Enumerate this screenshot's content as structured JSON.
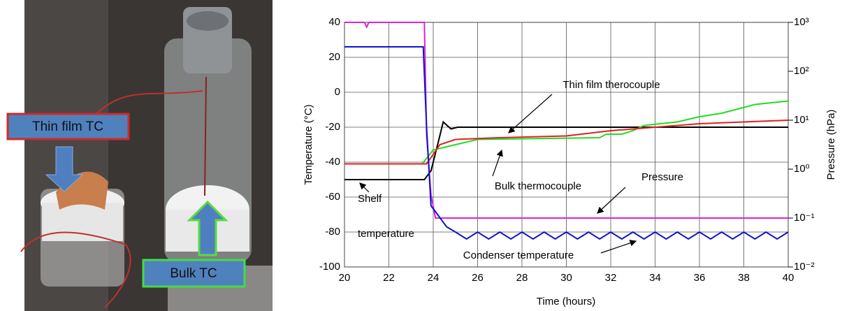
{
  "photo": {
    "labels": [
      "Thin film TC",
      "Bulk TC"
    ]
  },
  "chart_data": {
    "type": "line",
    "xlabel": "Time (hours)",
    "ylabel": "Temperature (°C)",
    "y2label": "Pressure (hPa)",
    "xlim": [
      20,
      40
    ],
    "xticks": [
      20,
      22,
      24,
      26,
      28,
      30,
      32,
      34,
      36,
      38,
      40
    ],
    "ylim": [
      -100,
      40
    ],
    "yticks": [
      -100,
      -80,
      -60,
      -40,
      -20,
      0,
      20,
      40
    ],
    "y2lim": [
      0.01,
      1000
    ],
    "y2log": true,
    "y2ticks": [
      {
        "value": 0.01,
        "label": "10⁻²"
      },
      {
        "value": 0.1,
        "label": "10⁻¹"
      },
      {
        "value": 1,
        "label": "10⁰"
      },
      {
        "value": 10,
        "label": "10¹"
      },
      {
        "value": 100,
        "label": "10²"
      },
      {
        "value": 1000,
        "label": "10³"
      }
    ],
    "grid": true,
    "annotations": [
      "Thin film therocouple",
      "Bulk thermocouple",
      "Pressure",
      "Shelf",
      "temperature",
      "Condenser temperature"
    ],
    "series": [
      {
        "color": "#000000",
        "x": [
          20,
          23.6,
          23.9,
          24.2,
          24.45,
          24.8,
          25.1,
          40
        ],
        "values": [
          -50,
          -50,
          -45,
          -30,
          -17,
          -21,
          -20,
          -20
        ]
      },
      {
        "color": "#22dd22",
        "x": [
          20,
          23.5,
          24,
          25,
          26,
          31.5,
          31.8,
          32.5,
          33,
          33.5,
          35,
          36,
          37,
          38.5,
          40
        ],
        "values": [
          -41,
          -41,
          -33,
          -30,
          -27,
          -26,
          -24,
          -24,
          -22,
          -19,
          -17,
          -14,
          -12,
          -7,
          -5
        ]
      },
      {
        "color": "#dd2222",
        "x": [
          20,
          23.7,
          24.3,
          25,
          27,
          30,
          32,
          34,
          36,
          40
        ],
        "values": [
          -41,
          -41,
          -30,
          -27,
          -26,
          -25,
          -22,
          -20,
          -18,
          -16
        ]
      },
      {
        "color": "#dd22dd",
        "axis": "y2",
        "x": [
          20,
          20.9,
          21,
          21.1,
          23.6,
          23.7,
          23.9,
          24.1,
          40
        ],
        "values": [
          1000,
          1000,
          800,
          1000,
          1000,
          5,
          0.3,
          0.1,
          0.1
        ]
      },
      {
        "color": "#1111cc",
        "x": [
          20,
          23.55,
          23.7,
          23.9,
          24.2,
          24.6,
          25,
          25.5,
          26,
          26.5,
          27,
          27.5,
          28,
          28.5,
          29,
          29.5,
          30,
          30.5,
          31,
          31.5,
          32,
          32.5,
          33,
          33.5,
          34,
          34.5,
          35,
          35.5,
          36,
          36.5,
          37,
          37.5,
          38,
          38.5,
          39,
          39.5,
          40
        ],
        "values": [
          26,
          26,
          -20,
          -65,
          -70,
          -77,
          -80,
          -84,
          -80,
          -84,
          -80,
          -84,
          -80,
          -84,
          -80,
          -84,
          -80,
          -84,
          -80,
          -84,
          -80,
          -84,
          -80,
          -84,
          -80,
          -84,
          -80,
          -84,
          -80,
          -84,
          -80,
          -84,
          -80,
          -84,
          -80,
          -84,
          -80
        ]
      }
    ]
  }
}
